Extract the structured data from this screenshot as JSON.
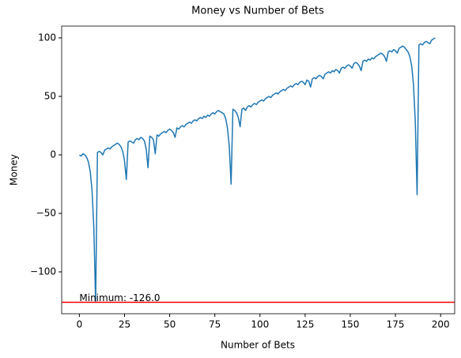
{
  "chart_data": {
    "type": "line",
    "title": "Money vs Number of Bets",
    "x_label": "Number of Bets",
    "y_label": "Money",
    "x": [
      0,
      1,
      2,
      3,
      4,
      5,
      6,
      7,
      8,
      9,
      10,
      11,
      12,
      13,
      14,
      15,
      16,
      17,
      18,
      19,
      20,
      21,
      22,
      23,
      24,
      25,
      26,
      27,
      28,
      29,
      30,
      31,
      32,
      33,
      34,
      35,
      36,
      37,
      38,
      39,
      40,
      41,
      42,
      43,
      44,
      45,
      46,
      47,
      48,
      49,
      50,
      51,
      52,
      53,
      54,
      55,
      56,
      57,
      58,
      59,
      60,
      61,
      62,
      63,
      64,
      65,
      66,
      67,
      68,
      69,
      70,
      71,
      72,
      73,
      74,
      75,
      76,
      77,
      78,
      79,
      80,
      81,
      82,
      83,
      84,
      85,
      86,
      87,
      88,
      89,
      90,
      91,
      92,
      93,
      94,
      95,
      96,
      97,
      98,
      99,
      100,
      101,
      102,
      103,
      104,
      105,
      106,
      107,
      108,
      109,
      110,
      111,
      112,
      113,
      114,
      115,
      116,
      117,
      118,
      119,
      120,
      121,
      122,
      123,
      124,
      125,
      126,
      127,
      128,
      129,
      130,
      131,
      132,
      133,
      134,
      135,
      136,
      137,
      138,
      139,
      140,
      141,
      142,
      143,
      144,
      145,
      146,
      147,
      148,
      149,
      150,
      151,
      152,
      153,
      154,
      155,
      156,
      157,
      158,
      159,
      160,
      161,
      162,
      163,
      164,
      165,
      166,
      167,
      168,
      169,
      170,
      171,
      172,
      173,
      174,
      175,
      176,
      177,
      178,
      179,
      180,
      181,
      182,
      183,
      184,
      185,
      186,
      187,
      188,
      189,
      190,
      191,
      192,
      193,
      194,
      195,
      196,
      197
    ],
    "series": [
      {
        "name": "Money",
        "color": "#1f77b4",
        "values": [
          0,
          -1,
          1,
          0,
          -2,
          -6,
          -14,
          -30,
          -62,
          -126,
          2,
          3,
          2,
          0,
          4,
          5,
          6,
          5,
          7,
          8,
          9,
          10,
          9,
          7,
          3,
          -5,
          -21,
          11,
          12,
          11,
          10,
          13,
          14,
          13,
          15,
          14,
          12,
          5,
          -11,
          16,
          15,
          13,
          1,
          17,
          16,
          18,
          19,
          20,
          19,
          21,
          22,
          21,
          19,
          15,
          23,
          22,
          24,
          25,
          24,
          26,
          27,
          28,
          27,
          29,
          30,
          29,
          31,
          32,
          31,
          33,
          32,
          34,
          33,
          35,
          36,
          35,
          37,
          38,
          37,
          36,
          35,
          31,
          23,
          7,
          -25,
          39,
          38,
          36,
          32,
          24,
          39,
          40,
          38,
          41,
          42,
          41,
          43,
          44,
          43,
          45,
          46,
          47,
          46,
          48,
          49,
          50,
          49,
          51,
          52,
          53,
          52,
          54,
          55,
          56,
          55,
          57,
          58,
          59,
          58,
          60,
          61,
          60,
          62,
          63,
          62,
          60,
          64,
          63,
          58,
          65,
          66,
          65,
          67,
          68,
          67,
          65,
          69,
          70,
          71,
          70,
          72,
          71,
          73,
          72,
          70,
          74,
          75,
          74,
          76,
          77,
          76,
          74,
          78,
          79,
          78,
          76,
          72,
          80,
          81,
          80,
          82,
          81,
          83,
          82,
          84,
          85,
          86,
          87,
          86,
          84,
          80,
          88,
          89,
          88,
          90,
          89,
          87,
          91,
          92,
          93,
          92,
          90,
          88,
          84,
          76,
          60,
          28,
          -34,
          94,
          95,
          94,
          96,
          97,
          96,
          95,
          98,
          99,
          100
        ]
      }
    ],
    "xlim": [
      -9.8,
      207.8
    ],
    "ylim": [
      -135.8,
      110.1
    ],
    "xticks": [
      0,
      25,
      50,
      75,
      100,
      125,
      150,
      175,
      200
    ],
    "yticks": [
      {
        "value": -100,
        "label": "−100"
      },
      {
        "value": -50,
        "label": "−50"
      },
      0,
      50,
      100
    ],
    "min_line": -126,
    "min_line_color": "#ff0000",
    "annotation": "Minimum: -126.0"
  }
}
